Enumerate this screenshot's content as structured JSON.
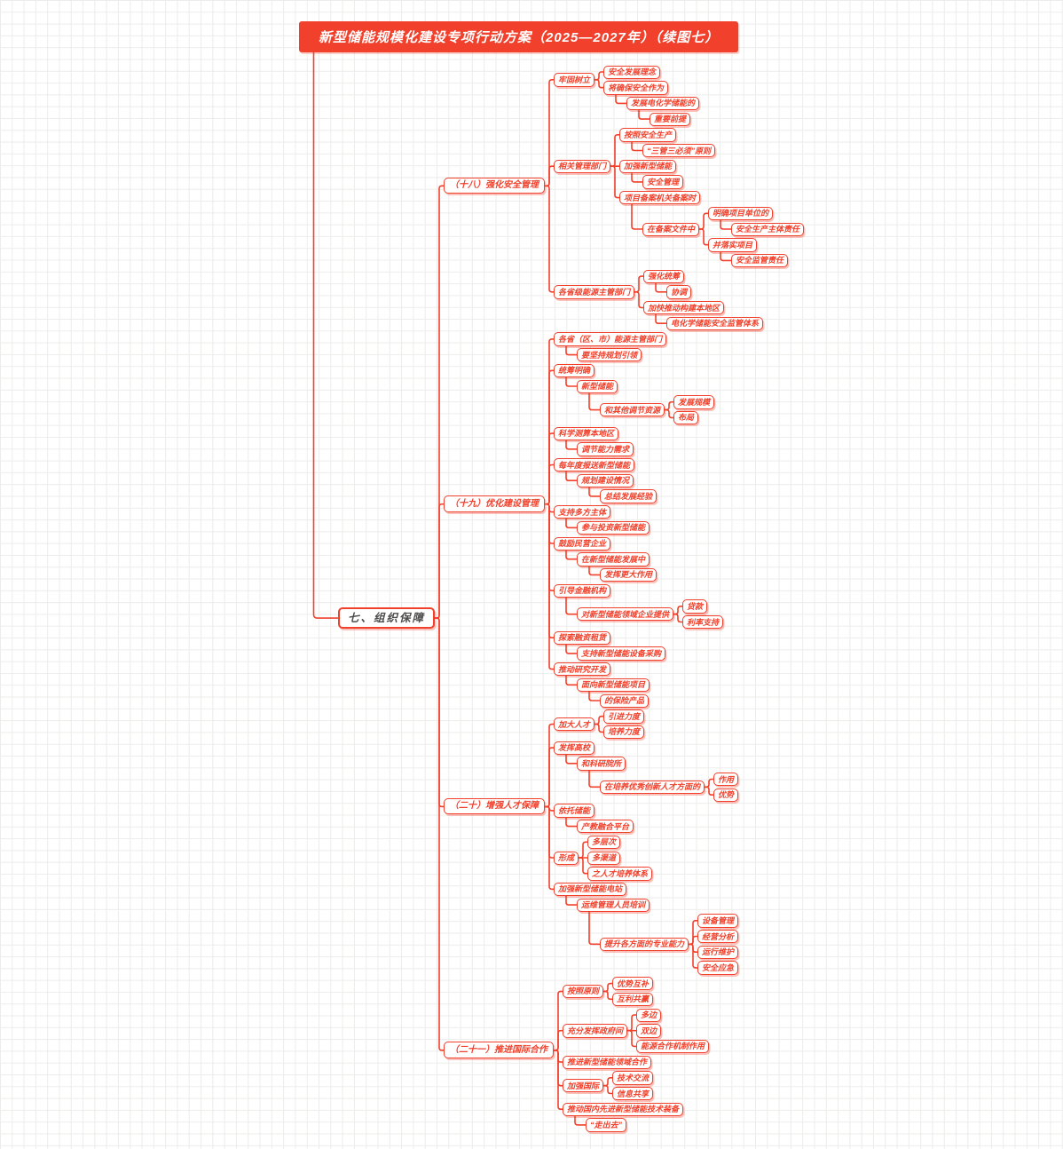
{
  "title": "新型储能规模化建设专项行动方案（2025—2027年）（续图七）",
  "colors": {
    "accent": "#f1402b",
    "title_bg": "#f1402b",
    "title_text": "#ffffff",
    "root_text": "#4d4d4d",
    "node_bg": "#ffffff"
  },
  "root": {
    "label": "七、组织保障",
    "children": [
      {
        "label": "（十八）强化安全管理",
        "children": [
          {
            "label": "牢固树立",
            "children": [
              {
                "label": "安全发展理念"
              },
              {
                "label": "将确保安全作为",
                "children": [
                  {
                    "label": "发展电化学储能的",
                    "children": [
                      {
                        "label": "重要前提"
                      }
                    ]
                  }
                ]
              }
            ]
          },
          {
            "label": "相关管理部门",
            "children": [
              {
                "label": "按照安全生产",
                "children": [
                  {
                    "label": "“三管三必须”原则"
                  }
                ]
              },
              {
                "label": "加强新型储能",
                "children": [
                  {
                    "label": "安全管理"
                  }
                ]
              },
              {
                "label": "项目备案机关备案时",
                "children": [
                  {
                    "label": "在备案文件中",
                    "children": [
                      {
                        "label": "明确项目单位的",
                        "children": [
                          {
                            "label": "安全生产主体责任"
                          }
                        ]
                      },
                      {
                        "label": "并落实项目",
                        "children": [
                          {
                            "label": "安全监管责任"
                          }
                        ]
                      }
                    ]
                  }
                ]
              }
            ]
          },
          {
            "label": "各省级能源主管部门",
            "children": [
              {
                "label": "强化统筹",
                "children": [
                  {
                    "label": "协调"
                  }
                ]
              },
              {
                "label": "加快推动构建本地区",
                "children": [
                  {
                    "label": "电化学储能安全监管体系"
                  }
                ]
              }
            ]
          }
        ]
      },
      {
        "label": "（十九）优化建设管理",
        "children": [
          {
            "label": "各省（区、市）能源主管部门",
            "children": [
              {
                "label": "要坚持规划引领"
              }
            ]
          },
          {
            "label": "统筹明确",
            "children": [
              {
                "label": "新型储能",
                "children": [
                  {
                    "label": "和其他调节资源",
                    "children": [
                      {
                        "label": "发展规模"
                      },
                      {
                        "label": "布局"
                      }
                    ]
                  }
                ]
              }
            ]
          },
          {
            "label": "科学测算本地区",
            "children": [
              {
                "label": "调节能力需求"
              }
            ]
          },
          {
            "label": "每年度报送新型储能",
            "children": [
              {
                "label": "规划建设情况",
                "children": [
                  {
                    "label": "总结发展经验"
                  }
                ]
              }
            ]
          },
          {
            "label": "支持多方主体",
            "children": [
              {
                "label": "参与投资新型储能"
              }
            ]
          },
          {
            "label": "鼓励民营企业",
            "children": [
              {
                "label": "在新型储能发展中",
                "children": [
                  {
                    "label": "发挥更大作用"
                  }
                ]
              }
            ]
          },
          {
            "label": "引导金融机构",
            "children": [
              {
                "label": "对新型储能领域企业提供",
                "children": [
                  {
                    "label": "贷款"
                  },
                  {
                    "label": "利率支持"
                  }
                ]
              }
            ]
          },
          {
            "label": "探索融资租赁",
            "children": [
              {
                "label": "支持新型储能设备采购"
              }
            ]
          },
          {
            "label": "推动研究开发",
            "children": [
              {
                "label": "面向新型储能项目",
                "children": [
                  {
                    "label": "的保险产品"
                  }
                ]
              }
            ]
          }
        ]
      },
      {
        "label": "（二十）增强人才保障",
        "children": [
          {
            "label": "加大人才",
            "children": [
              {
                "label": "引进力度"
              },
              {
                "label": "培养力度"
              }
            ]
          },
          {
            "label": "发挥高校",
            "children": [
              {
                "label": "和科研院所",
                "children": [
                  {
                    "label": "在培养优秀创新人才方面的",
                    "children": [
                      {
                        "label": "作用"
                      },
                      {
                        "label": "优势"
                      }
                    ]
                  }
                ]
              }
            ]
          },
          {
            "label": "依托储能",
            "children": [
              {
                "label": "产教融合平台"
              }
            ]
          },
          {
            "label": "形成",
            "children": [
              {
                "label": "多层次"
              },
              {
                "label": "多渠道"
              },
              {
                "label": "之人才培养体系"
              }
            ]
          },
          {
            "label": "加强新型储能电站",
            "children": [
              {
                "label": "运维管理人员培训",
                "children": [
                  {
                    "label": "提升各方面的专业能力",
                    "children": [
                      {
                        "label": "设备管理"
                      },
                      {
                        "label": "经营分析"
                      },
                      {
                        "label": "运行维护"
                      },
                      {
                        "label": "安全应急"
                      }
                    ]
                  }
                ]
              }
            ]
          }
        ]
      },
      {
        "label": "（二十一）推进国际合作",
        "children": [
          {
            "label": "按照原则",
            "children": [
              {
                "label": "优势互补"
              },
              {
                "label": "互利共赢"
              }
            ]
          },
          {
            "label": "充分发挥政府间",
            "children": [
              {
                "label": "多边"
              },
              {
                "label": "双边"
              },
              {
                "label": "能源合作机制作用"
              }
            ]
          },
          {
            "label": "推进新型储能领域合作"
          },
          {
            "label": "加强国际",
            "children": [
              {
                "label": "技术交流"
              },
              {
                "label": "信息共享"
              }
            ]
          },
          {
            "label": "推动国内先进新型储能技术装备",
            "children": [
              {
                "label": "“走出去”"
              }
            ]
          }
        ]
      }
    ]
  }
}
